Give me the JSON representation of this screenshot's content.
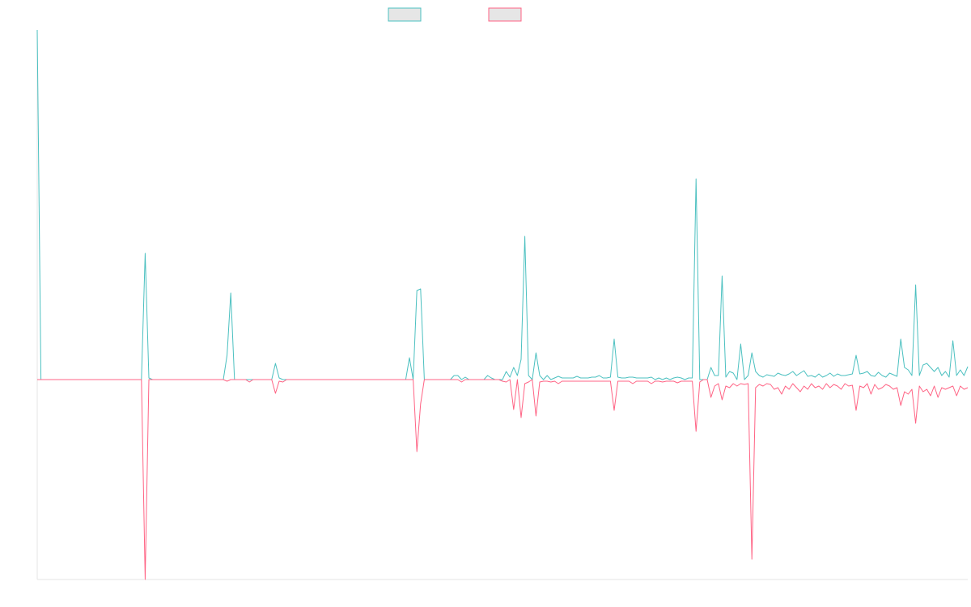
{
  "chart_data": {
    "type": "line",
    "ylim": [
      -247,
      432
    ],
    "legend": "top",
    "series": [
      {
        "color": "#4bc0c0",
        "values": [
          432,
          0,
          0,
          0,
          0,
          0,
          0,
          0,
          0,
          0,
          0,
          0,
          0,
          0,
          0,
          0,
          0,
          0,
          0,
          0,
          0,
          0,
          0,
          0,
          0,
          0,
          0,
          0,
          0,
          156,
          2,
          0,
          0,
          0,
          0,
          0,
          0,
          0,
          0,
          0,
          0,
          0,
          0,
          0,
          0,
          0,
          0,
          0,
          0,
          0,
          0,
          30,
          107,
          0,
          0,
          0,
          0,
          0,
          0,
          0,
          0,
          0,
          0,
          0,
          20,
          2,
          0,
          0,
          0,
          0,
          0,
          0,
          0,
          0,
          0,
          0,
          0,
          0,
          0,
          0,
          0,
          0,
          0,
          0,
          0,
          0,
          0,
          0,
          0,
          0,
          0,
          0,
          0,
          0,
          0,
          0,
          0,
          0,
          0,
          0,
          27,
          0,
          110,
          112,
          0,
          0,
          0,
          0,
          0,
          0,
          0,
          0,
          5,
          5,
          0,
          3,
          0,
          0,
          0,
          0,
          0,
          5,
          2,
          0,
          0,
          0,
          10,
          3,
          15,
          5,
          25,
          177,
          5,
          0,
          33,
          5,
          0,
          5,
          0,
          2,
          4,
          2,
          2,
          2,
          2,
          4,
          2,
          2,
          2,
          3,
          3,
          5,
          2,
          2,
          3,
          50,
          3,
          2,
          2,
          3,
          3,
          2,
          2,
          2,
          2,
          3,
          0,
          2,
          0,
          2,
          0,
          2,
          3,
          2,
          0,
          2,
          2,
          248,
          0,
          0,
          0,
          15,
          5,
          5,
          128,
          3,
          10,
          8,
          0,
          44,
          0,
          5,
          33,
          10,
          5,
          3,
          6,
          5,
          4,
          8,
          6,
          5,
          7,
          10,
          5,
          8,
          11,
          4,
          5,
          3,
          7,
          3,
          5,
          8,
          4,
          7,
          5,
          5,
          6,
          7,
          30,
          7,
          8,
          10,
          5,
          4,
          9,
          5,
          3,
          8,
          6,
          4,
          50,
          15,
          12,
          5,
          117,
          5,
          18,
          20,
          15,
          10,
          15,
          5,
          10,
          3,
          48,
          5,
          12,
          5,
          16
        ]
      },
      {
        "color": "#ff6384",
        "values": [
          0,
          0,
          0,
          0,
          0,
          0,
          0,
          0,
          0,
          0,
          0,
          0,
          0,
          0,
          0,
          0,
          0,
          0,
          0,
          0,
          0,
          0,
          0,
          0,
          0,
          0,
          0,
          0,
          0,
          -247,
          0,
          0,
          0,
          0,
          0,
          0,
          0,
          0,
          0,
          0,
          0,
          0,
          0,
          0,
          0,
          0,
          0,
          0,
          0,
          0,
          0,
          -2,
          0,
          0,
          0,
          0,
          0,
          -3,
          0,
          0,
          0,
          0,
          0,
          0,
          -17,
          -2,
          -3,
          0,
          0,
          0,
          0,
          0,
          0,
          0,
          0,
          0,
          0,
          0,
          0,
          0,
          0,
          0,
          0,
          0,
          0,
          0,
          0,
          0,
          0,
          0,
          0,
          0,
          0,
          0,
          0,
          0,
          0,
          0,
          0,
          0,
          0,
          0,
          -89,
          -30,
          0,
          0,
          0,
          0,
          0,
          0,
          0,
          0,
          0,
          0,
          -3,
          0,
          0,
          0,
          0,
          0,
          0,
          0,
          0,
          0,
          0,
          -2,
          -3,
          0,
          -37,
          0,
          -47,
          -5,
          -3,
          0,
          -45,
          -3,
          -2,
          -2,
          -3,
          -2,
          -5,
          -2,
          -2,
          -2,
          -2,
          -2,
          -2,
          -2,
          -2,
          -2,
          -2,
          -2,
          -2,
          -2,
          -2,
          -38,
          -2,
          -2,
          -2,
          -2,
          -5,
          -2,
          -2,
          -2,
          -2,
          -5,
          -2,
          -2,
          -3,
          -2,
          -2,
          -2,
          -4,
          -2,
          -2,
          -2,
          -2,
          -64,
          -3,
          0,
          0,
          -22,
          -8,
          -5,
          -25,
          -8,
          -10,
          -5,
          -8,
          -5,
          -6,
          -5,
          -222,
          -10,
          -6,
          -8,
          -5,
          -6,
          -12,
          -10,
          -18,
          -8,
          -12,
          -5,
          -10,
          -15,
          -8,
          -12,
          -5,
          -10,
          -8,
          -12,
          -5,
          -10,
          -6,
          -8,
          -12,
          -5,
          -8,
          -7,
          -38,
          -8,
          -10,
          -5,
          -18,
          -6,
          -12,
          -10,
          -6,
          -8,
          -12,
          -10,
          -32,
          -15,
          -18,
          -12,
          -54,
          -8,
          -15,
          -12,
          -20,
          -8,
          -22,
          -10,
          -12,
          -10,
          -8,
          -20,
          -8,
          -12,
          -10
        ]
      }
    ]
  }
}
